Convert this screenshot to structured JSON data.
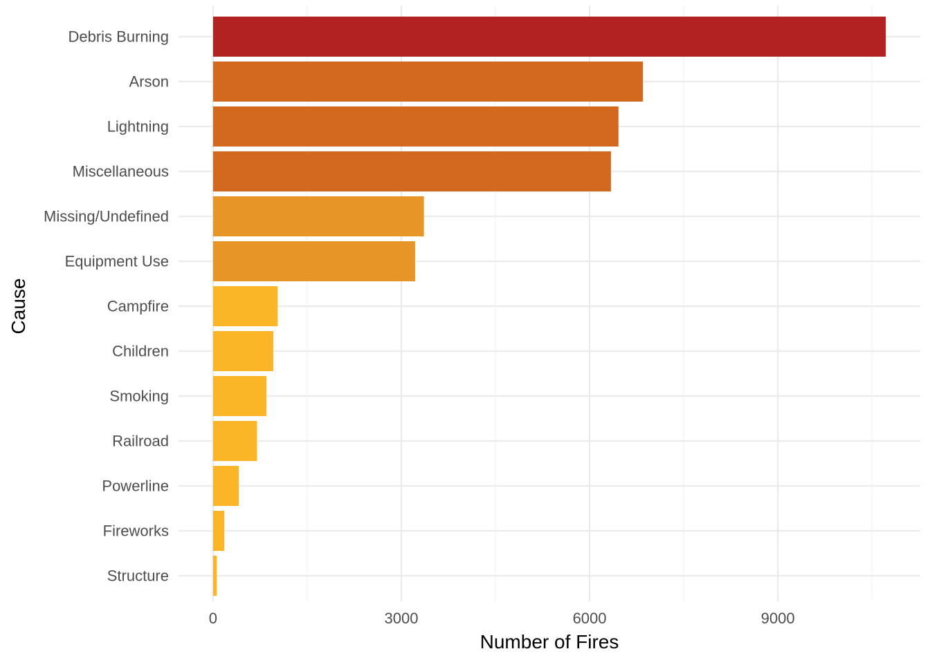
{
  "chart_data": {
    "type": "bar",
    "orientation": "horizontal",
    "title": "",
    "xlabel": "Number of Fires",
    "ylabel": "Cause",
    "categories": [
      "Debris Burning",
      "Arson",
      "Lightning",
      "Miscellaneous",
      "Missing/Undefined",
      "Equipment Use",
      "Campfire",
      "Children",
      "Smoking",
      "Railroad",
      "Powerline",
      "Fireworks",
      "Structure"
    ],
    "values": [
      10720,
      6850,
      6460,
      6340,
      3360,
      3220,
      1030,
      960,
      850,
      700,
      410,
      180,
      60
    ],
    "colors": [
      "#b22222",
      "#d2691e",
      "#d2691e",
      "#d2691e",
      "#e89528",
      "#e89528",
      "#fab627",
      "#fab627",
      "#fab627",
      "#fab627",
      "#fab627",
      "#fab627",
      "#fab627"
    ],
    "xlim": [
      -550,
      11270
    ],
    "x_ticks": [
      0,
      3000,
      6000,
      9000
    ],
    "x_tick_labels": [
      "0",
      "3000",
      "6000",
      "9000"
    ],
    "grid": true,
    "legend": "none"
  }
}
